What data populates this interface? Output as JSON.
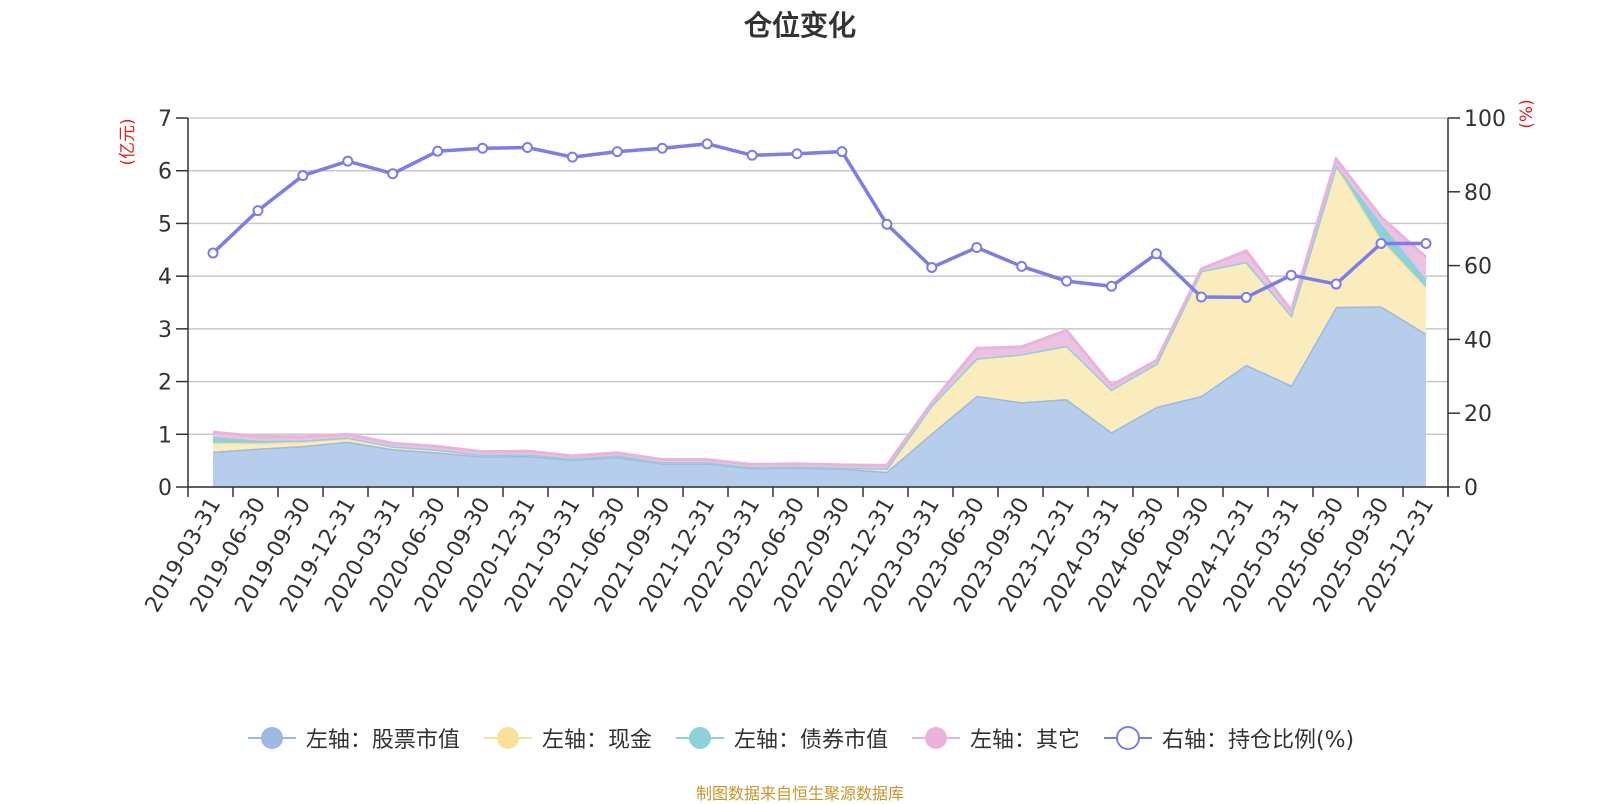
{
  "title": "仓位变化",
  "source_note": "制图数据来自恒生聚源数据库",
  "chart_data": {
    "type": "area",
    "title": "仓位变化",
    "left_axis_label": "(亿元)",
    "right_axis_label": "(%)",
    "left_ylim": [
      0,
      7
    ],
    "left_ticks": [
      0,
      1,
      2,
      3,
      4,
      5,
      6,
      7
    ],
    "right_ylim": [
      0,
      100
    ],
    "right_ticks": [
      0,
      20,
      40,
      60,
      80,
      100
    ],
    "grid": true,
    "legend_position": "bottom",
    "categories": [
      "2019-03-31",
      "2019-06-30",
      "2019-09-30",
      "2019-12-31",
      "2020-03-31",
      "2020-06-30",
      "2020-09-30",
      "2020-12-31",
      "2021-03-31",
      "2021-06-30",
      "2021-09-30",
      "2021-12-31",
      "2022-03-31",
      "2022-06-30",
      "2022-09-30",
      "2022-12-31",
      "2023-03-31",
      "2023-06-30",
      "2023-09-30",
      "2023-12-31",
      "2024-03-31",
      "2024-06-30",
      "2024-09-30",
      "2024-12-31",
      "2025-03-31",
      "2025-06-30",
      "2025-09-30",
      "2025-12-31"
    ],
    "stacked_series": [
      {
        "name": "左轴：股票市值",
        "axis": "left",
        "color": "#9cb9e2",
        "fill": "#b7cdec",
        "values": [
          0.67,
          0.73,
          0.78,
          0.86,
          0.72,
          0.66,
          0.58,
          0.59,
          0.52,
          0.57,
          0.45,
          0.45,
          0.36,
          0.37,
          0.35,
          0.29,
          1.02,
          1.73,
          1.61,
          1.67,
          1.04,
          1.52,
          1.73,
          2.32,
          1.93,
          3.42,
          3.43,
          2.91
        ]
      },
      {
        "name": "左轴：现金",
        "axis": "left",
        "color": "#f8e29a",
        "fill": "#faecbd",
        "values": [
          0.17,
          0.1,
          0.08,
          0.06,
          0.05,
          0.05,
          0.03,
          0.03,
          0.02,
          0.03,
          0.02,
          0.02,
          0.02,
          0.02,
          0.02,
          0.06,
          0.53,
          0.71,
          0.91,
          1.01,
          0.81,
          0.82,
          2.37,
          1.95,
          1.33,
          2.68,
          1.27,
          0.88
        ]
      },
      {
        "name": "左轴：债券市值",
        "axis": "left",
        "color": "#8fd1d8",
        "fill": "#8fd1d8",
        "values": [
          0.11,
          0.05,
          0.02,
          0.02,
          0.0,
          0.0,
          0.0,
          0.0,
          0.0,
          0.0,
          0.0,
          0.0,
          0.0,
          0.0,
          0.0,
          0.0,
          0.0,
          0.0,
          0.0,
          0.0,
          0.0,
          0.0,
          0.0,
          0.0,
          0.0,
          0.0,
          0.3,
          0.15
        ]
      },
      {
        "name": "左轴：其它",
        "axis": "left",
        "color": "#e9b3db",
        "fill": "#ebc2e1",
        "values": [
          0.09,
          0.08,
          0.07,
          0.06,
          0.06,
          0.06,
          0.06,
          0.06,
          0.05,
          0.05,
          0.05,
          0.05,
          0.05,
          0.05,
          0.05,
          0.06,
          0.05,
          0.19,
          0.14,
          0.29,
          0.08,
          0.06,
          0.04,
          0.21,
          0.09,
          0.12,
          0.12,
          0.42
        ]
      }
    ],
    "line_series": {
      "name": "右轴：持仓比例(%)",
      "axis": "right",
      "color": "#7b7de8",
      "values": [
        63.4,
        74.9,
        84.4,
        88.3,
        84.9,
        91.0,
        91.8,
        92.0,
        89.4,
        90.9,
        91.8,
        93.0,
        89.9,
        90.3,
        90.9,
        71.2,
        59.5,
        64.9,
        59.8,
        55.8,
        54.4,
        63.2,
        51.5,
        51.4,
        57.4,
        55.0,
        66.0,
        66.0
      ]
    }
  },
  "legend": [
    {
      "label": "左轴：股票市值",
      "color": "#9cb9e2",
      "kind": "area"
    },
    {
      "label": "左轴：现金",
      "color": "#f8e29a",
      "kind": "area"
    },
    {
      "label": "左轴：债券市值",
      "color": "#8fd1d8",
      "kind": "area"
    },
    {
      "label": "左轴：其它",
      "color": "#e9b3db",
      "kind": "area"
    },
    {
      "label": "右轴：持仓比例(%)",
      "color": "#7b7de8",
      "kind": "line"
    }
  ]
}
